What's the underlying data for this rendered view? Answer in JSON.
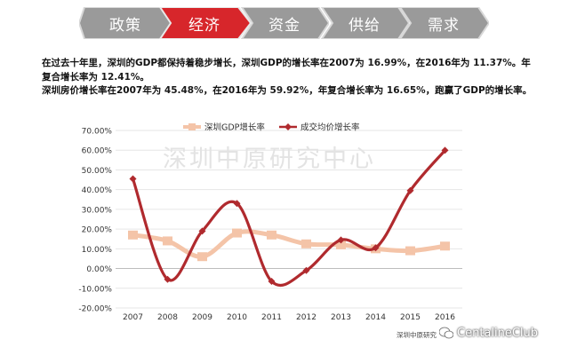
{
  "tabs": [
    {
      "label": "政策",
      "active": false
    },
    {
      "label": "经济",
      "active": true
    },
    {
      "label": "资金",
      "active": false
    },
    {
      "label": "供给",
      "active": false
    },
    {
      "label": "需求",
      "active": false
    }
  ],
  "intro": {
    "line1_a": "在过去十年里，深圳的GDP都保持着稳步增长，深圳GDP的增长率在2007为 ",
    "line1_v1": "16.99%",
    "line1_b": "，在2016年为 ",
    "line1_v2": "11.37%",
    "line1_c": "。年",
    "line2_a": "复合增长率为 ",
    "line2_v": "12.41%",
    "line2_b": "。",
    "line3_a": "深圳房价增长率在2007年为 ",
    "line3_v1": "45.48%",
    "line3_b": "，在2016年为 ",
    "line3_v2": "59.92%",
    "line3_c": "，年复合增长率为 ",
    "line3_v3": "16.65%",
    "line3_d": "，跑赢了GDP的增长率。"
  },
  "chart_data": {
    "type": "line",
    "title": "",
    "xlabel": "",
    "ylabel": "",
    "x": [
      "2007",
      "2008",
      "2009",
      "2010",
      "2011",
      "2012",
      "2013",
      "2014",
      "2015",
      "2016"
    ],
    "ylim": [
      -20,
      70
    ],
    "yticks": [
      "70.00%",
      "60.00%",
      "50.00%",
      "40.00%",
      "30.00%",
      "20.00%",
      "10.00%",
      "0.00%",
      "-10.00%",
      "-20.00%"
    ],
    "legend_position": "top",
    "series": [
      {
        "name": "深圳GDP增长率",
        "color": "#f4c4a8",
        "values": [
          16.99,
          14.0,
          6.0,
          18.0,
          17.0,
          12.5,
          12.0,
          10.0,
          9.0,
          11.37
        ]
      },
      {
        "name": "成交均价增长率",
        "color": "#b02a2e",
        "values": [
          45.48,
          -5.5,
          19.0,
          33.0,
          -6.5,
          -1.0,
          14.5,
          10.5,
          39.5,
          59.92
        ]
      }
    ],
    "watermark": "深圳中原研究中心"
  },
  "footer": {
    "source": "深圳中原研究",
    "brand": "CentalineClub"
  },
  "colors": {
    "tab_active": "#d7262b",
    "tab_inactive": "#9a9a9a",
    "gdp": "#f4c4a8",
    "price": "#b02a2e"
  }
}
